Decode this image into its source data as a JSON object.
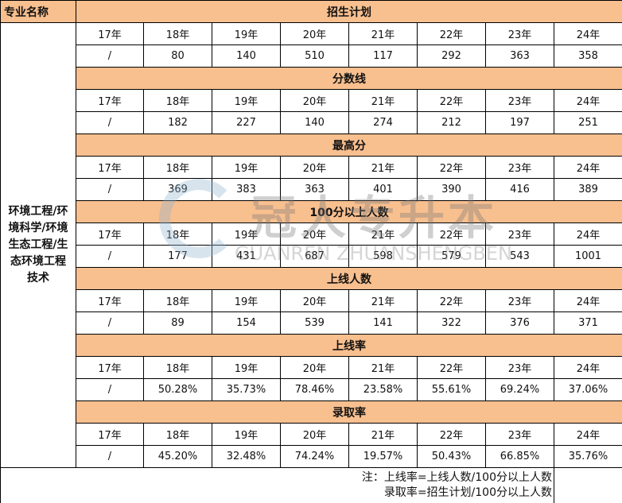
{
  "header_label": "专业名称",
  "major": "环境工程/环境科学/环境生态工程/生态环境工程技术",
  "years": [
    "17年",
    "18年",
    "19年",
    "20年",
    "21年",
    "22年",
    "23年",
    "24年"
  ],
  "sections": [
    {
      "title": "招生计划",
      "values": [
        "/",
        "80",
        "140",
        "510",
        "117",
        "292",
        "363",
        "358"
      ]
    },
    {
      "title": "分数线",
      "values": [
        "/",
        "182",
        "227",
        "140",
        "274",
        "212",
        "197",
        "251"
      ]
    },
    {
      "title": "最高分",
      "values": [
        "/",
        "369",
        "383",
        "363",
        "401",
        "390",
        "416",
        "389"
      ]
    },
    {
      "title": "100分以上人数",
      "values": [
        "/",
        "177",
        "431",
        "687",
        "598",
        "579",
        "543",
        "1001"
      ]
    },
    {
      "title": "上线人数",
      "values": [
        "/",
        "89",
        "154",
        "539",
        "141",
        "322",
        "376",
        "371"
      ]
    },
    {
      "title": "上线率",
      "values": [
        "/",
        "50.28%",
        "35.73%",
        "78.46%",
        "23.58%",
        "55.61%",
        "69.24%",
        "37.06%"
      ]
    },
    {
      "title": "录取率",
      "values": [
        "/",
        "45.20%",
        "32.48%",
        "74.24%",
        "19.57%",
        "50.43%",
        "66.85%",
        "35.76%"
      ]
    }
  ],
  "note": {
    "line1": "注：上线率=上线人数/100分以上人数",
    "line2": "录取率=招生计划/100分以上人数"
  },
  "watermark": {
    "cn": "冠人专升本",
    "en": "GUANREN ZHUANSHENGBEN"
  },
  "colors": {
    "header_bg": "#f8bf8f"
  }
}
